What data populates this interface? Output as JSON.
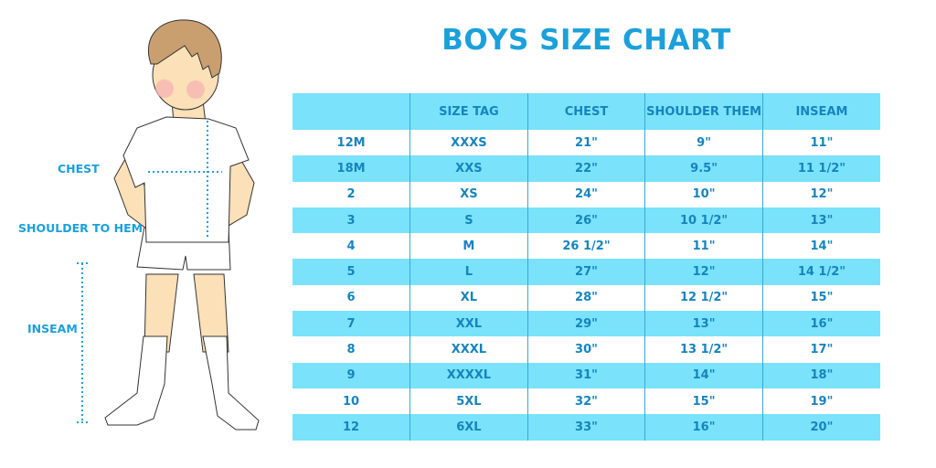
{
  "title": "BOYS SIZE CHART",
  "figure_labels": {
    "chest": "CHEST",
    "shoulder_to_hem": "SHOULDER TO HEM",
    "inseam": "INSEAM"
  },
  "colors": {
    "accent": "#1ba0da",
    "row_highlight": "#7ae2fb",
    "text": "#1684bd"
  },
  "table": {
    "headers": [
      "",
      "SIZE TAG",
      "CHEST",
      "SHOULDER THEM",
      "INSEAM"
    ],
    "rows": [
      [
        "12M",
        "XXXS",
        "21\"",
        "9\"",
        "11\""
      ],
      [
        "18M",
        "XXS",
        "22\"",
        "9.5\"",
        "11 1/2\""
      ],
      [
        "2",
        "XS",
        "24\"",
        "10\"",
        "12\""
      ],
      [
        "3",
        "S",
        "26\"",
        "10 1/2\"",
        "13\""
      ],
      [
        "4",
        "M",
        "26 1/2\"",
        "11\"",
        "14\""
      ],
      [
        "5",
        "L",
        "27\"",
        "12\"",
        "14 1/2\""
      ],
      [
        "6",
        "XL",
        "28\"",
        "12 1/2\"",
        "15\""
      ],
      [
        "7",
        "XXL",
        "29\"",
        "13\"",
        "16\""
      ],
      [
        "8",
        "XXXL",
        "30\"",
        "13 1/2\"",
        "17\""
      ],
      [
        "9",
        "XXXXL",
        "31\"",
        "14\"",
        "18\""
      ],
      [
        "10",
        "5XL",
        "32\"",
        "15\"",
        "19\""
      ],
      [
        "12",
        "6XL",
        "33\"",
        "16\"",
        "20\""
      ]
    ]
  }
}
